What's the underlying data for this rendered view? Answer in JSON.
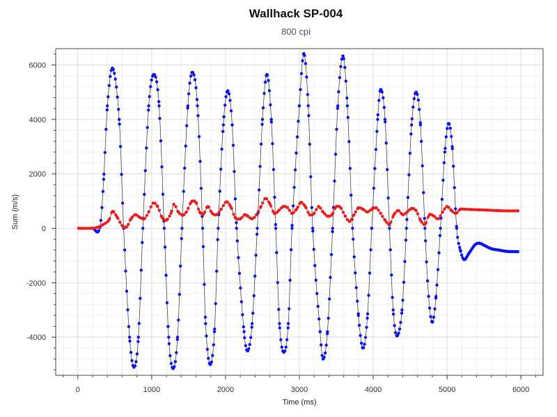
{
  "chart_data": {
    "type": "scatter",
    "title": "Wallhack SP-004",
    "subtitle": "800 cpi",
    "xlabel": "Time (ms)",
    "ylabel": "Sum (m/s)",
    "xlim": [
      -300,
      6300
    ],
    "ylim": [
      -5400,
      6600
    ],
    "x_ticks": [
      0,
      1000,
      2000,
      3000,
      4000,
      5000,
      6000
    ],
    "y_ticks": [
      -4000,
      -2000,
      0,
      2000,
      4000,
      6000
    ],
    "grid": true,
    "legend": "none",
    "series": [
      {
        "color": "#0a14ee",
        "line_color": "#444444",
        "points": [
          [
            200,
            0
          ],
          [
            300,
            50
          ],
          [
            350,
            1800
          ],
          [
            400,
            4500
          ],
          [
            470,
            5880
          ],
          [
            560,
            4000
          ],
          [
            620,
            0
          ],
          [
            700,
            -4000
          ],
          [
            760,
            -5100
          ],
          [
            820,
            -4000
          ],
          [
            880,
            0
          ],
          [
            960,
            4500
          ],
          [
            1030,
            5650
          ],
          [
            1100,
            4500
          ],
          [
            1170,
            0
          ],
          [
            1230,
            -4000
          ],
          [
            1290,
            -5150
          ],
          [
            1350,
            -4000
          ],
          [
            1410,
            0
          ],
          [
            1490,
            4500
          ],
          [
            1550,
            5730
          ],
          [
            1620,
            4500
          ],
          [
            1690,
            0
          ],
          [
            1730,
            -3500
          ],
          [
            1790,
            -5000
          ],
          [
            1850,
            -3800
          ],
          [
            1900,
            0
          ],
          [
            1970,
            3800
          ],
          [
            2030,
            5050
          ],
          [
            2090,
            3800
          ],
          [
            2150,
            0
          ],
          [
            2250,
            -3800
          ],
          [
            2300,
            -4500
          ],
          [
            2360,
            -3500
          ],
          [
            2430,
            0
          ],
          [
            2500,
            4000
          ],
          [
            2560,
            5650
          ],
          [
            2620,
            4000
          ],
          [
            2680,
            0
          ],
          [
            2730,
            -3500
          ],
          [
            2790,
            -4550
          ],
          [
            2850,
            -3500
          ],
          [
            2900,
            0
          ],
          [
            3000,
            4500
          ],
          [
            3060,
            6420
          ],
          [
            3120,
            4500
          ],
          [
            3180,
            0
          ],
          [
            3280,
            -3800
          ],
          [
            3320,
            -4800
          ],
          [
            3380,
            -3800
          ],
          [
            3450,
            0
          ],
          [
            3520,
            4500
          ],
          [
            3590,
            6330
          ],
          [
            3650,
            4500
          ],
          [
            3720,
            0
          ],
          [
            3800,
            -3200
          ],
          [
            3860,
            -4400
          ],
          [
            3920,
            -3300
          ],
          [
            3980,
            0
          ],
          [
            4060,
            4000
          ],
          [
            4100,
            5100
          ],
          [
            4160,
            4000
          ],
          [
            4220,
            0
          ],
          [
            4270,
            -3000
          ],
          [
            4320,
            -3950
          ],
          [
            4390,
            -3000
          ],
          [
            4450,
            0
          ],
          [
            4520,
            3800
          ],
          [
            4580,
            5000
          ],
          [
            4640,
            3800
          ],
          [
            4700,
            0
          ],
          [
            4750,
            -2500
          ],
          [
            4800,
            -3450
          ],
          [
            4850,
            -2500
          ],
          [
            4910,
            0
          ],
          [
            4970,
            2800
          ],
          [
            5020,
            3850
          ],
          [
            5070,
            3000
          ],
          [
            5130,
            0
          ],
          [
            5180,
            -800
          ],
          [
            5230,
            -1150
          ],
          [
            5300,
            -900
          ],
          [
            5380,
            -600
          ],
          [
            5440,
            -550
          ],
          [
            5520,
            -650
          ],
          [
            5600,
            -750
          ],
          [
            5700,
            -800
          ],
          [
            5820,
            -850
          ],
          [
            5960,
            -860
          ]
        ]
      },
      {
        "color": "#ee1c1c",
        "line_color": "#444444",
        "points": [
          [
            10,
            0
          ],
          [
            200,
            0
          ],
          [
            260,
            30
          ],
          [
            330,
            120
          ],
          [
            420,
            300
          ],
          [
            470,
            620
          ],
          [
            530,
            420
          ],
          [
            600,
            100
          ],
          [
            660,
            50
          ],
          [
            720,
            350
          ],
          [
            780,
            500
          ],
          [
            840,
            400
          ],
          [
            900,
            350
          ],
          [
            960,
            600
          ],
          [
            1020,
            930
          ],
          [
            1080,
            800
          ],
          [
            1140,
            400
          ],
          [
            1200,
            300
          ],
          [
            1260,
            550
          ],
          [
            1300,
            880
          ],
          [
            1360,
            600
          ],
          [
            1420,
            480
          ],
          [
            1470,
            600
          ],
          [
            1540,
            980
          ],
          [
            1600,
            950
          ],
          [
            1650,
            600
          ],
          [
            1700,
            520
          ],
          [
            1760,
            800
          ],
          [
            1820,
            550
          ],
          [
            1880,
            500
          ],
          [
            1940,
            700
          ],
          [
            2010,
            970
          ],
          [
            2070,
            800
          ],
          [
            2130,
            400
          ],
          [
            2200,
            350
          ],
          [
            2260,
            500
          ],
          [
            2300,
            450
          ],
          [
            2360,
            350
          ],
          [
            2420,
            500
          ],
          [
            2480,
            800
          ],
          [
            2540,
            1100
          ],
          [
            2600,
            900
          ],
          [
            2660,
            550
          ],
          [
            2720,
            650
          ],
          [
            2780,
            800
          ],
          [
            2840,
            760
          ],
          [
            2900,
            550
          ],
          [
            2960,
            700
          ],
          [
            3020,
            950
          ],
          [
            3080,
            800
          ],
          [
            3140,
            500
          ],
          [
            3200,
            550
          ],
          [
            3260,
            800
          ],
          [
            3320,
            600
          ],
          [
            3380,
            450
          ],
          [
            3440,
            500
          ],
          [
            3500,
            800
          ],
          [
            3560,
            750
          ],
          [
            3620,
            450
          ],
          [
            3680,
            250
          ],
          [
            3740,
            500
          ],
          [
            3800,
            750
          ],
          [
            3860,
            700
          ],
          [
            3920,
            600
          ],
          [
            3980,
            700
          ],
          [
            4040,
            750
          ],
          [
            4100,
            550
          ],
          [
            4160,
            300
          ],
          [
            4220,
            150
          ],
          [
            4280,
            500
          ],
          [
            4340,
            650
          ],
          [
            4400,
            500
          ],
          [
            4460,
            600
          ],
          [
            4520,
            730
          ],
          [
            4580,
            650
          ],
          [
            4640,
            300
          ],
          [
            4700,
            150
          ],
          [
            4760,
            500
          ],
          [
            4820,
            450
          ],
          [
            4880,
            350
          ],
          [
            4940,
            600
          ],
          [
            5000,
            800
          ],
          [
            5060,
            650
          ],
          [
            5120,
            550
          ],
          [
            5180,
            700
          ],
          [
            5240,
            700
          ],
          [
            5320,
            690
          ],
          [
            5420,
            680
          ],
          [
            5540,
            670
          ],
          [
            5680,
            650
          ],
          [
            5820,
            640
          ],
          [
            5960,
            640
          ]
        ]
      }
    ]
  }
}
